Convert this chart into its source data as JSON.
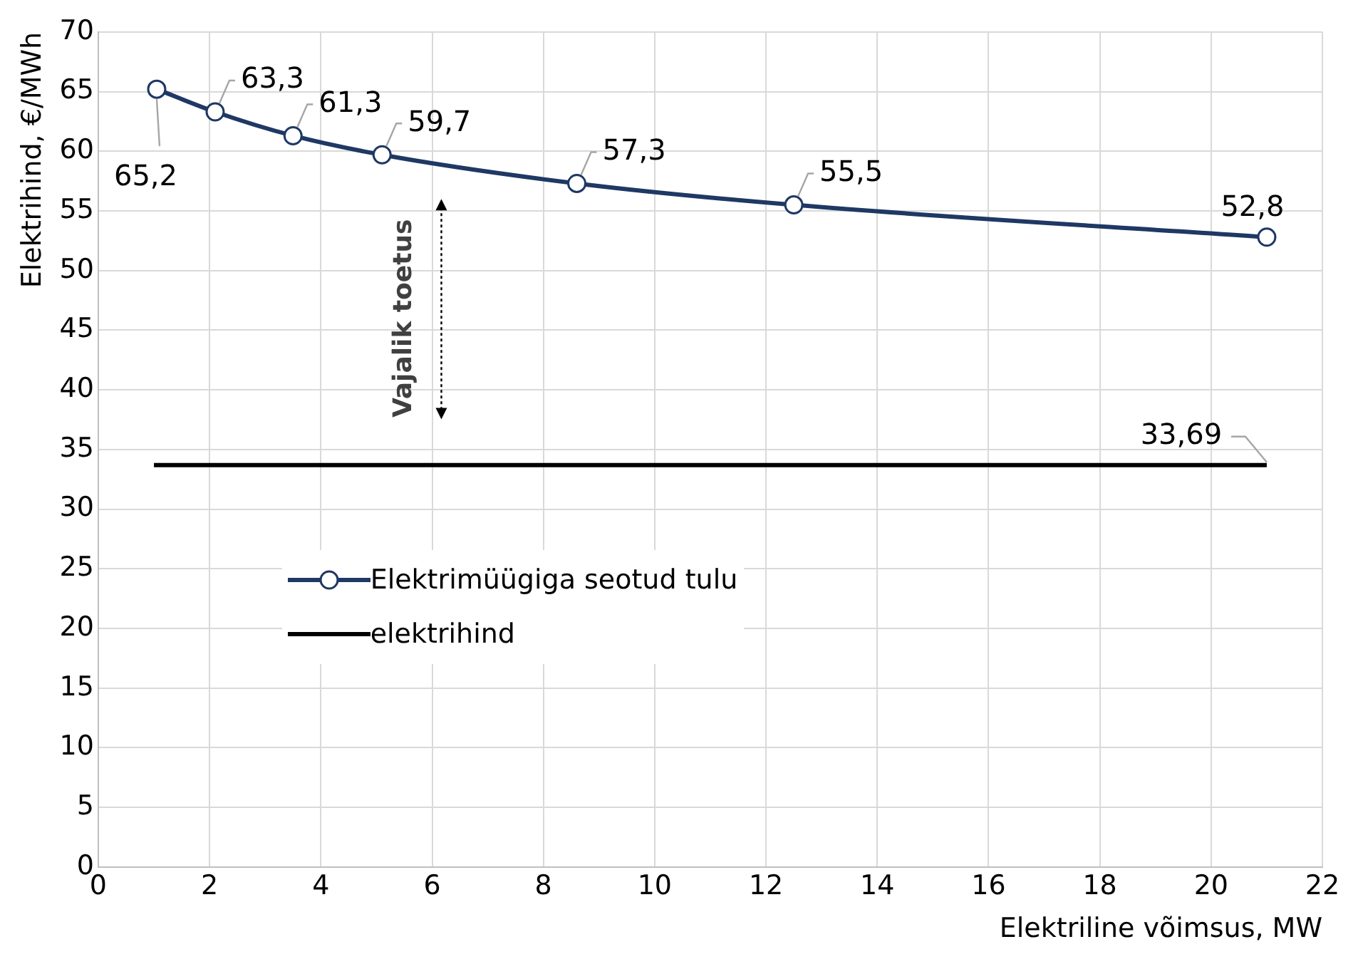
{
  "chart_data": {
    "type": "line",
    "xlabel": "Elektriline võimsus, MW",
    "ylabel": "Elektrihind, €/MWh",
    "xlim": [
      0,
      22
    ],
    "xticks": [
      0,
      2,
      4,
      6,
      8,
      10,
      12,
      14,
      16,
      18,
      20,
      22
    ],
    "ylim": [
      0,
      70
    ],
    "yticks": [
      0,
      5,
      10,
      15,
      20,
      25,
      30,
      35,
      40,
      45,
      50,
      55,
      60,
      65,
      70
    ],
    "grid": true,
    "legend": "left",
    "line_style": "solid",
    "series": [
      {
        "name": "Elektrimüügiga seotud tulu",
        "color": "#1f3864",
        "marker": "circle",
        "x": [
          1.05,
          2.1,
          3.5,
          5.1,
          8.6,
          12.5,
          21
        ],
        "values": [
          65.2,
          63.3,
          61.3,
          59.7,
          57.3,
          55.5,
          52.8
        ],
        "value_labels": [
          "65,2",
          "63,3",
          "61,3",
          "59,7",
          "57,3",
          "55,5",
          "52,8"
        ]
      },
      {
        "name": "elektrihind",
        "color": "#000000",
        "marker": "none",
        "x": [
          1,
          21
        ],
        "values": [
          33.69,
          33.69
        ],
        "value_labels": [
          null,
          "33,69"
        ]
      }
    ],
    "annotations": [
      "Vajalik toetus"
    ]
  }
}
